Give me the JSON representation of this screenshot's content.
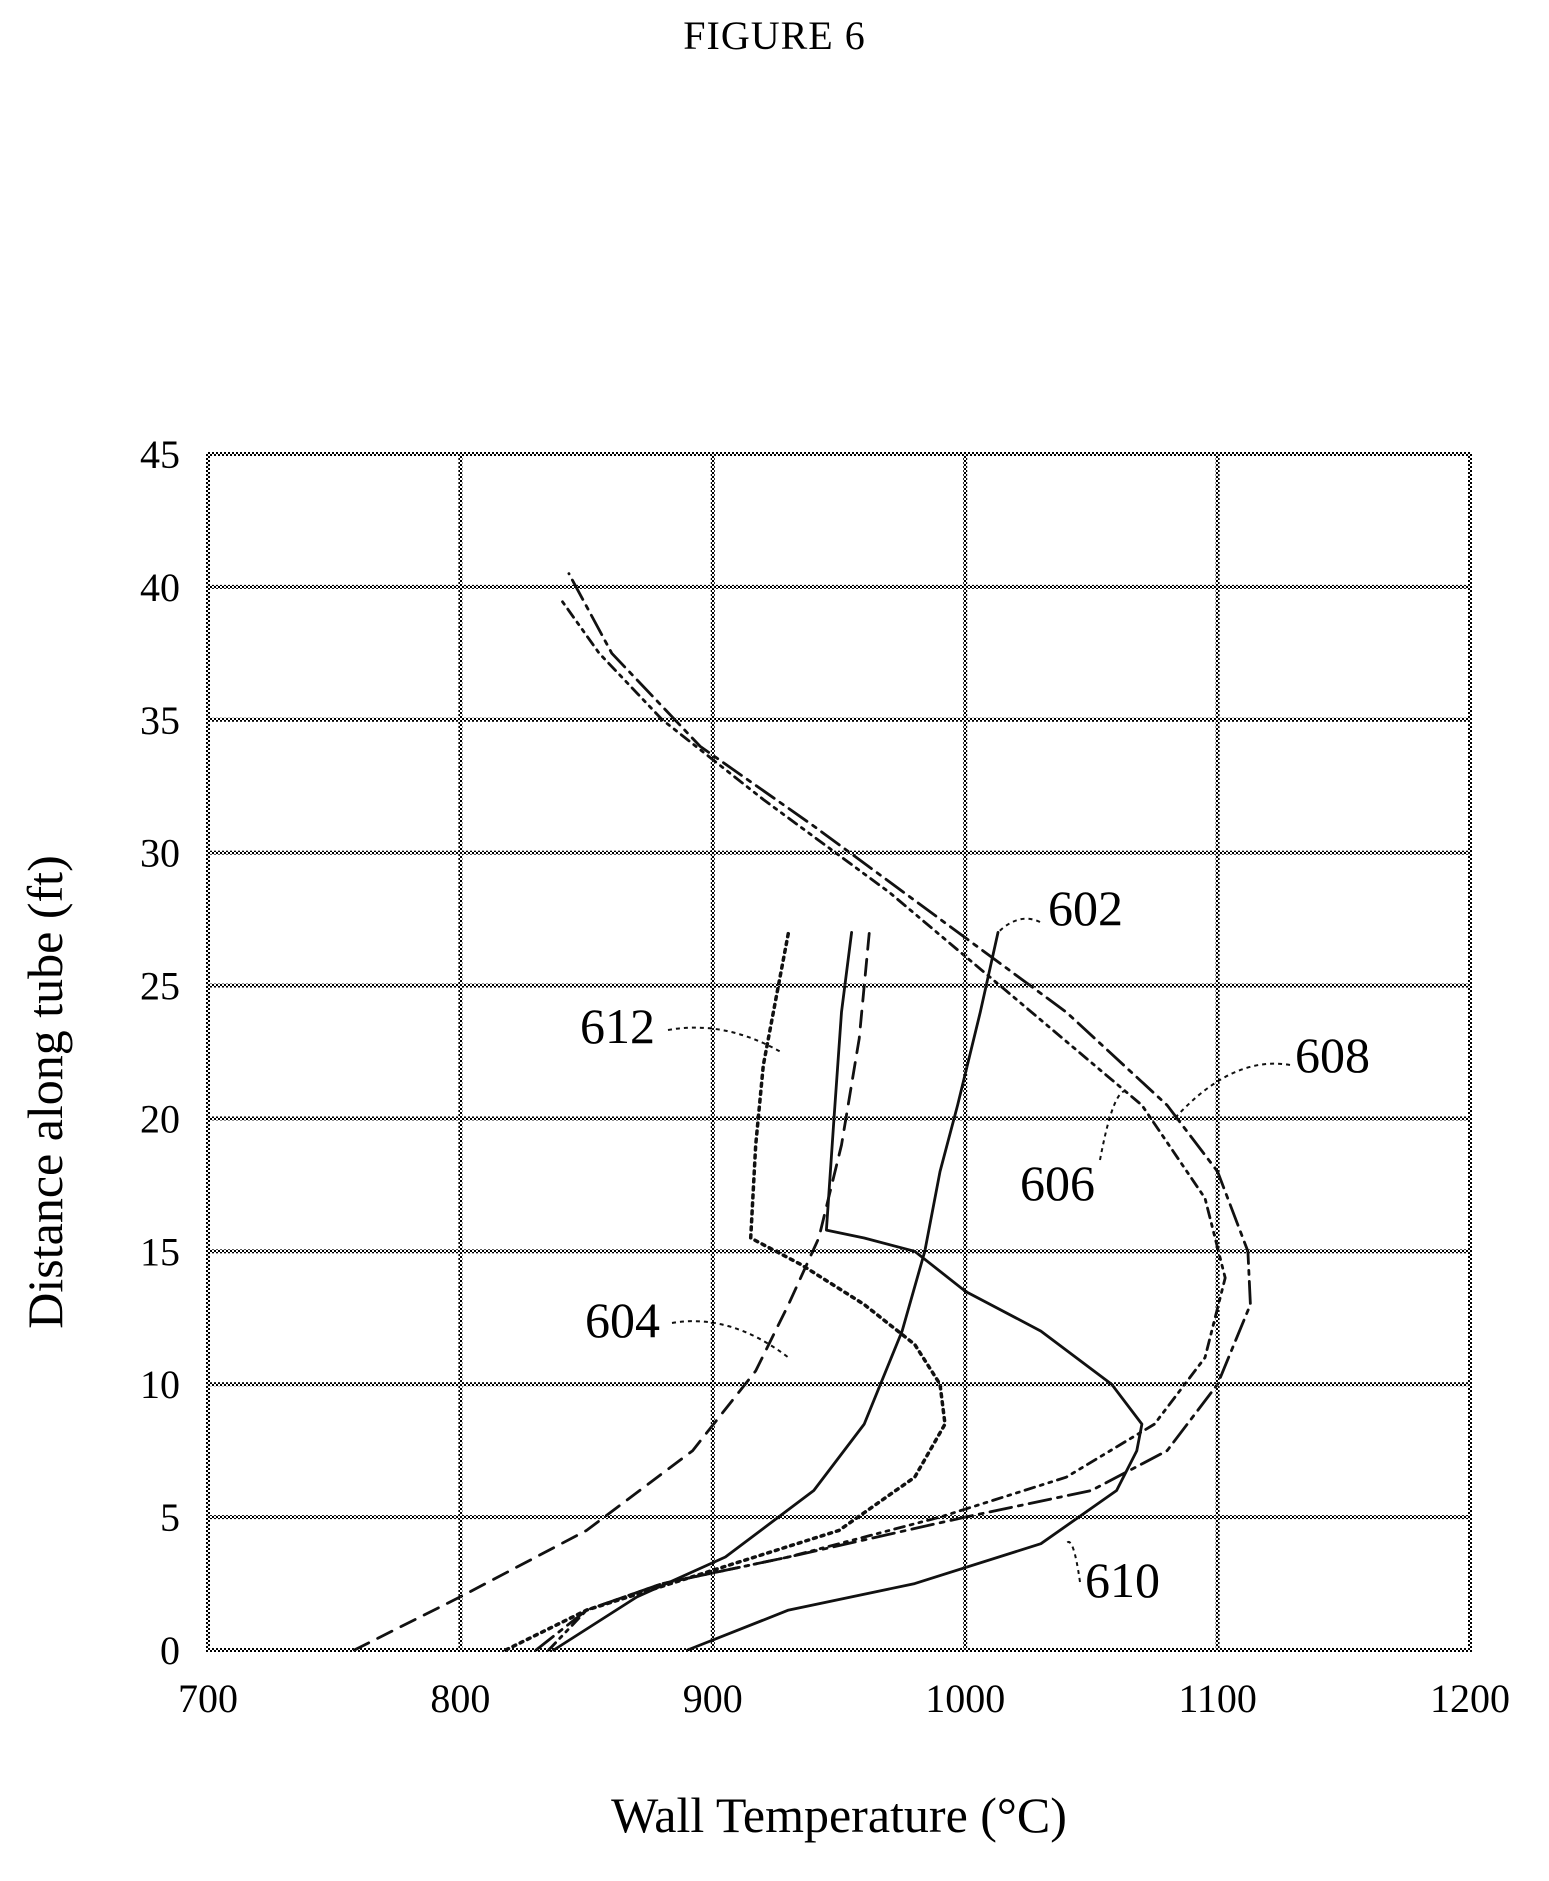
{
  "figure_title": "FIGURE 6",
  "chart_data": {
    "type": "line",
    "title": "",
    "xlabel": "Wall Temperature (°C)",
    "ylabel": "Distance along tube (ft)",
    "xlim": [
      700,
      1200
    ],
    "ylim": [
      0,
      45
    ],
    "xticks": [
      700,
      800,
      900,
      1000,
      1100,
      1200
    ],
    "yticks": [
      0,
      5,
      10,
      15,
      20,
      25,
      30,
      35,
      40,
      45
    ],
    "grid": true,
    "series": [
      {
        "name": "602",
        "style": "solid",
        "points": [
          [
            837,
            0
          ],
          [
            870,
            2
          ],
          [
            905,
            3.5
          ],
          [
            940,
            6
          ],
          [
            960,
            8.5
          ],
          [
            975,
            12
          ],
          [
            984,
            15
          ],
          [
            990,
            18
          ],
          [
            997,
            20.5
          ],
          [
            1006,
            24
          ],
          [
            1013,
            27
          ]
        ]
      },
      {
        "name": "604",
        "style": "dashed",
        "points": [
          [
            758,
            0
          ],
          [
            800,
            2
          ],
          [
            850,
            4.5
          ],
          [
            892,
            7.5
          ],
          [
            917,
            10.5
          ],
          [
            930,
            13
          ],
          [
            942,
            15.5
          ],
          [
            951,
            19
          ],
          [
            958,
            23
          ],
          [
            962,
            27
          ]
        ]
      },
      {
        "name": "606",
        "style": "dash-dot-dot",
        "points": [
          [
            835,
            0
          ],
          [
            850,
            1.5
          ],
          [
            880,
            2.5
          ],
          [
            930,
            3.5
          ],
          [
            990,
            5
          ],
          [
            1040,
            6.5
          ],
          [
            1075,
            8.5
          ],
          [
            1095,
            11
          ],
          [
            1103,
            14
          ],
          [
            1095,
            17
          ],
          [
            1070,
            20.5
          ],
          [
            1020,
            24.5
          ],
          [
            970,
            28.5
          ],
          [
            920,
            32
          ],
          [
            880,
            35
          ],
          [
            855,
            37.5
          ],
          [
            840,
            39.5
          ]
        ]
      },
      {
        "name": "608",
        "style": "long-dash-dot",
        "points": [
          [
            830,
            0
          ],
          [
            850,
            1.5
          ],
          [
            880,
            2.5
          ],
          [
            930,
            3.5
          ],
          [
            1000,
            5
          ],
          [
            1050,
            6
          ],
          [
            1080,
            7.5
          ],
          [
            1100,
            10
          ],
          [
            1113,
            13
          ],
          [
            1112,
            15
          ],
          [
            1100,
            18
          ],
          [
            1080,
            20.5
          ],
          [
            1040,
            24
          ],
          [
            990,
            27.5
          ],
          [
            940,
            31
          ],
          [
            895,
            34
          ],
          [
            860,
            37.5
          ],
          [
            843,
            40.5
          ]
        ]
      },
      {
        "name": "610",
        "style": "solid",
        "points": [
          [
            890,
            0
          ],
          [
            930,
            1.5
          ],
          [
            980,
            2.5
          ],
          [
            1030,
            4
          ],
          [
            1060,
            6
          ],
          [
            1068,
            7.5
          ],
          [
            1070,
            8.5
          ],
          [
            1058,
            10
          ],
          [
            1030,
            12
          ],
          [
            1000,
            13.5
          ],
          [
            980,
            15
          ],
          [
            960,
            15.5
          ],
          [
            945,
            15.8
          ],
          [
            948,
            20
          ],
          [
            951,
            24
          ],
          [
            955,
            27
          ]
        ]
      },
      {
        "name": "612",
        "style": "dotted",
        "points": [
          [
            818,
            0
          ],
          [
            850,
            1.5
          ],
          [
            900,
            3
          ],
          [
            950,
            4.5
          ],
          [
            980,
            6.5
          ],
          [
            992,
            8.5
          ],
          [
            990,
            10
          ],
          [
            980,
            11.5
          ],
          [
            960,
            13
          ],
          [
            935,
            14.5
          ],
          [
            915,
            15.5
          ],
          [
            917,
            19
          ],
          [
            920,
            22
          ],
          [
            925,
            24.5
          ],
          [
            930,
            27
          ]
        ]
      }
    ],
    "annotations": [
      {
        "text": "602",
        "target": [
          1013,
          27
        ]
      },
      {
        "text": "604",
        "target": [
          930,
          11
        ]
      },
      {
        "text": "606",
        "target": [
          1065,
          21
        ]
      },
      {
        "text": "608",
        "target": [
          1083,
          20
        ]
      },
      {
        "text": "610",
        "target": [
          1040,
          4
        ]
      },
      {
        "text": "612",
        "target": [
          927,
          22.5
        ]
      }
    ]
  }
}
